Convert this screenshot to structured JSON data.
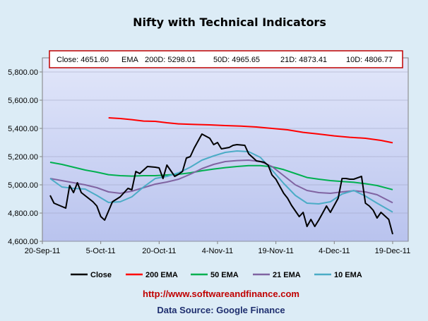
{
  "chart_data": {
    "type": "line",
    "title": "Nifty with Technical Indicators",
    "stats": {
      "close": "Close: 4651.60",
      "ema": "EMA",
      "ema200": "200D: 5298.01",
      "ema50": "50D: 4965.65",
      "ema21": "21D: 4873.41",
      "ema10": "10D: 4806.77"
    },
    "x_ticks": [
      "20-Sep-11",
      "5-Oct-11",
      "20-Oct-11",
      "4-Nov-11",
      "19-Nov-11",
      "4-Dec-11",
      "19-Dec-11"
    ],
    "y_ticks": [
      "4,600.00",
      "4,800.00",
      "5,000.00",
      "5,200.00",
      "5,400.00",
      "5,600.00",
      "5,800.00"
    ],
    "xlim": [
      "2011-09-20",
      "2011-12-23"
    ],
    "ylim": [
      4600,
      5900
    ],
    "grid": true,
    "legend_position": "bottom",
    "footer_url": "http://www.softwareandfinance.com",
    "footer_source": "Data Source: Google Finance",
    "series": [
      {
        "name": "Close",
        "color": "#000000",
        "points": [
          [
            "2011-09-22",
            4925
          ],
          [
            "2011-09-23",
            4870
          ],
          [
            "2011-09-26",
            4835
          ],
          [
            "2011-09-27",
            4995
          ],
          [
            "2011-09-28",
            4945
          ],
          [
            "2011-09-29",
            5015
          ],
          [
            "2011-09-30",
            4945
          ],
          [
            "2011-10-03",
            4880
          ],
          [
            "2011-10-04",
            4850
          ],
          [
            "2011-10-05",
            4775
          ],
          [
            "2011-10-06",
            4750
          ],
          [
            "2011-10-07",
            4815
          ],
          [
            "2011-10-08",
            4880
          ],
          [
            "2011-10-10",
            4915
          ],
          [
            "2011-10-11",
            4945
          ],
          [
            "2011-10-12",
            4975
          ],
          [
            "2011-10-13",
            4965
          ],
          [
            "2011-10-14",
            5095
          ],
          [
            "2011-10-15",
            5080
          ],
          [
            "2011-10-17",
            5130
          ],
          [
            "2011-10-19",
            5125
          ],
          [
            "2011-10-20",
            5120
          ],
          [
            "2011-10-21",
            5045
          ],
          [
            "2011-10-22",
            5140
          ],
          [
            "2011-10-24",
            5060
          ],
          [
            "2011-10-25",
            5075
          ],
          [
            "2011-10-26",
            5095
          ],
          [
            "2011-10-27",
            5190
          ],
          [
            "2011-10-28",
            5200
          ],
          [
            "2011-10-29",
            5260
          ],
          [
            "2011-10-31",
            5360
          ],
          [
            "2011-11-02",
            5330
          ],
          [
            "2011-11-03",
            5285
          ],
          [
            "2011-11-04",
            5300
          ],
          [
            "2011-11-05",
            5255
          ],
          [
            "2011-11-07",
            5265
          ],
          [
            "2011-11-08",
            5280
          ],
          [
            "2011-11-09",
            5285
          ],
          [
            "2011-11-11",
            5280
          ],
          [
            "2011-11-12",
            5220
          ],
          [
            "2011-11-14",
            5170
          ],
          [
            "2011-11-15",
            5165
          ],
          [
            "2011-11-16",
            5160
          ],
          [
            "2011-11-17",
            5140
          ],
          [
            "2011-11-18",
            5070
          ],
          [
            "2011-11-19",
            5040
          ],
          [
            "2011-11-21",
            4940
          ],
          [
            "2011-11-22",
            4905
          ],
          [
            "2011-11-23",
            4855
          ],
          [
            "2011-11-24",
            4815
          ],
          [
            "2011-11-25",
            4775
          ],
          [
            "2011-11-26",
            4805
          ],
          [
            "2011-11-27",
            4705
          ],
          [
            "2011-11-28",
            4755
          ],
          [
            "2011-11-29",
            4705
          ],
          [
            "2011-11-30",
            4750
          ],
          [
            "2011-12-01",
            4800
          ],
          [
            "2011-12-02",
            4850
          ],
          [
            "2011-12-03",
            4805
          ],
          [
            "2011-12-04",
            4855
          ],
          [
            "2011-12-05",
            4905
          ],
          [
            "2011-12-06",
            5045
          ],
          [
            "2011-12-07",
            5045
          ],
          [
            "2011-12-08",
            5040
          ],
          [
            "2011-12-09",
            5040
          ],
          [
            "2011-12-11",
            5060
          ],
          [
            "2011-12-12",
            4870
          ],
          [
            "2011-12-13",
            4850
          ],
          [
            "2011-12-14",
            4820
          ],
          [
            "2011-12-15",
            4765
          ],
          [
            "2011-12-16",
            4805
          ],
          [
            "2011-12-18",
            4755
          ],
          [
            "2011-12-19",
            4650
          ]
        ]
      },
      {
        "name": "200 EMA",
        "color": "#ff0000",
        "points": [
          [
            "2011-10-07",
            5475
          ],
          [
            "2011-10-10",
            5470
          ],
          [
            "2011-10-13",
            5462
          ],
          [
            "2011-10-16",
            5452
          ],
          [
            "2011-10-19",
            5450
          ],
          [
            "2011-10-22",
            5440
          ],
          [
            "2011-10-25",
            5432
          ],
          [
            "2011-10-29",
            5428
          ],
          [
            "2011-11-02",
            5425
          ],
          [
            "2011-11-06",
            5420
          ],
          [
            "2011-11-10",
            5416
          ],
          [
            "2011-11-14",
            5410
          ],
          [
            "2011-11-18",
            5400
          ],
          [
            "2011-11-22",
            5390
          ],
          [
            "2011-11-26",
            5372
          ],
          [
            "2011-11-30",
            5360
          ],
          [
            "2011-12-04",
            5347
          ],
          [
            "2011-12-08",
            5337
          ],
          [
            "2011-12-12",
            5330
          ],
          [
            "2011-12-16",
            5315
          ],
          [
            "2011-12-19",
            5298
          ]
        ]
      },
      {
        "name": "50 EMA",
        "color": "#00b050",
        "points": [
          [
            "2011-09-22",
            5160
          ],
          [
            "2011-09-25",
            5145
          ],
          [
            "2011-09-28",
            5125
          ],
          [
            "2011-10-01",
            5105
          ],
          [
            "2011-10-04",
            5090
          ],
          [
            "2011-10-07",
            5072
          ],
          [
            "2011-10-10",
            5065
          ],
          [
            "2011-10-13",
            5062
          ],
          [
            "2011-10-16",
            5065
          ],
          [
            "2011-10-19",
            5065
          ],
          [
            "2011-10-22",
            5070
          ],
          [
            "2011-10-25",
            5075
          ],
          [
            "2011-10-28",
            5085
          ],
          [
            "2011-10-31",
            5100
          ],
          [
            "2011-11-03",
            5112
          ],
          [
            "2011-11-06",
            5122
          ],
          [
            "2011-11-09",
            5130
          ],
          [
            "2011-11-12",
            5136
          ],
          [
            "2011-11-15",
            5136
          ],
          [
            "2011-11-18",
            5128
          ],
          [
            "2011-11-21",
            5108
          ],
          [
            "2011-11-24",
            5080
          ],
          [
            "2011-11-27",
            5052
          ],
          [
            "2011-11-30",
            5040
          ],
          [
            "2011-12-03",
            5030
          ],
          [
            "2011-12-06",
            5024
          ],
          [
            "2011-12-09",
            5018
          ],
          [
            "2011-12-12",
            5008
          ],
          [
            "2011-12-15",
            4995
          ],
          [
            "2011-12-19",
            4966
          ]
        ]
      },
      {
        "name": "21 EMA",
        "color": "#8064a2",
        "points": [
          [
            "2011-09-22",
            5045
          ],
          [
            "2011-09-25",
            5030
          ],
          [
            "2011-09-28",
            5015
          ],
          [
            "2011-10-01",
            5000
          ],
          [
            "2011-10-04",
            4980
          ],
          [
            "2011-10-07",
            4950
          ],
          [
            "2011-10-10",
            4940
          ],
          [
            "2011-10-13",
            4955
          ],
          [
            "2011-10-16",
            4980
          ],
          [
            "2011-10-19",
            5005
          ],
          [
            "2011-10-22",
            5020
          ],
          [
            "2011-10-25",
            5040
          ],
          [
            "2011-10-28",
            5075
          ],
          [
            "2011-10-31",
            5115
          ],
          [
            "2011-11-03",
            5145
          ],
          [
            "2011-11-06",
            5165
          ],
          [
            "2011-11-09",
            5172
          ],
          [
            "2011-11-12",
            5175
          ],
          [
            "2011-11-15",
            5165
          ],
          [
            "2011-11-18",
            5130
          ],
          [
            "2011-11-21",
            5065
          ],
          [
            "2011-11-24",
            5000
          ],
          [
            "2011-11-27",
            4960
          ],
          [
            "2011-11-30",
            4945
          ],
          [
            "2011-12-03",
            4940
          ],
          [
            "2011-12-06",
            4950
          ],
          [
            "2011-12-09",
            4958
          ],
          [
            "2011-12-12",
            4950
          ],
          [
            "2011-12-15",
            4930
          ],
          [
            "2011-12-19",
            4873
          ]
        ]
      },
      {
        "name": "10 EMA",
        "color": "#4bacc6",
        "points": [
          [
            "2011-09-22",
            5045
          ],
          [
            "2011-09-25",
            4985
          ],
          [
            "2011-09-28",
            4975
          ],
          [
            "2011-10-01",
            4970
          ],
          [
            "2011-10-04",
            4925
          ],
          [
            "2011-10-07",
            4875
          ],
          [
            "2011-10-10",
            4880
          ],
          [
            "2011-10-13",
            4915
          ],
          [
            "2011-10-16",
            4985
          ],
          [
            "2011-10-19",
            5045
          ],
          [
            "2011-10-22",
            5060
          ],
          [
            "2011-10-25",
            5085
          ],
          [
            "2011-10-28",
            5125
          ],
          [
            "2011-10-31",
            5175
          ],
          [
            "2011-11-03",
            5205
          ],
          [
            "2011-11-06",
            5230
          ],
          [
            "2011-11-09",
            5240
          ],
          [
            "2011-11-12",
            5235
          ],
          [
            "2011-11-15",
            5195
          ],
          [
            "2011-11-18",
            5105
          ],
          [
            "2011-11-21",
            5010
          ],
          [
            "2011-11-24",
            4925
          ],
          [
            "2011-11-27",
            4870
          ],
          [
            "2011-11-30",
            4865
          ],
          [
            "2011-12-03",
            4880
          ],
          [
            "2011-12-06",
            4935
          ],
          [
            "2011-12-09",
            4960
          ],
          [
            "2011-12-12",
            4920
          ],
          [
            "2011-12-15",
            4870
          ],
          [
            "2011-12-19",
            4807
          ]
        ]
      }
    ]
  }
}
